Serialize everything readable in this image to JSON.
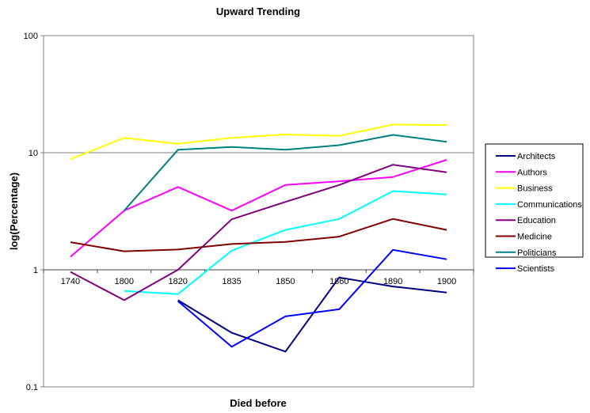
{
  "chart_data": {
    "type": "line",
    "title": "Upward Trending",
    "xlabel": "Died before",
    "ylabel": "log(Percentage)",
    "yscale": "log",
    "ylim": [
      0.1,
      100
    ],
    "yticks": [
      "100",
      "10",
      "1",
      "0.1"
    ],
    "ytick_values": [
      100,
      10,
      1,
      0.1
    ],
    "x_axis_crosses_at": 1,
    "categories": [
      "1740",
      "1800",
      "1820",
      "1835",
      "1850",
      "1860",
      "1890",
      "1900"
    ],
    "grid": "horizontal major gridlines",
    "legend_position": "right",
    "series": [
      {
        "name": "Architects",
        "color": "#000080",
        "values": [
          null,
          null,
          0.55,
          0.29,
          0.2,
          0.86,
          0.72,
          0.64
        ]
      },
      {
        "name": "Authors",
        "color": "#FF00FF",
        "values": [
          1.29,
          3.2,
          5.1,
          3.2,
          5.3,
          5.7,
          6.2,
          8.7
        ]
      },
      {
        "name": "Business",
        "color": "#FFFF00",
        "values": [
          8.8,
          13.4,
          11.9,
          13.4,
          14.3,
          13.9,
          17.4,
          17.2
        ]
      },
      {
        "name": "Communications",
        "color": "#00FFFF",
        "values": [
          null,
          0.66,
          0.62,
          1.46,
          2.19,
          2.72,
          4.7,
          4.4
        ]
      },
      {
        "name": "Education",
        "color": "#800080",
        "values": [
          0.96,
          0.55,
          1.0,
          2.7,
          3.8,
          5.3,
          7.9,
          6.8
        ]
      },
      {
        "name": "Medicine",
        "color": "#800000",
        "values": [
          1.72,
          1.44,
          1.49,
          1.66,
          1.73,
          1.92,
          2.72,
          2.19
        ]
      },
      {
        "name": "Politicians",
        "color": "#008080",
        "values": [
          null,
          3.2,
          10.6,
          11.2,
          10.6,
          11.6,
          14.2,
          12.4
        ]
      },
      {
        "name": "Scientists",
        "color": "#0000FF",
        "values": [
          null,
          null,
          0.54,
          0.22,
          0.4,
          0.46,
          1.48,
          1.23
        ]
      }
    ]
  }
}
